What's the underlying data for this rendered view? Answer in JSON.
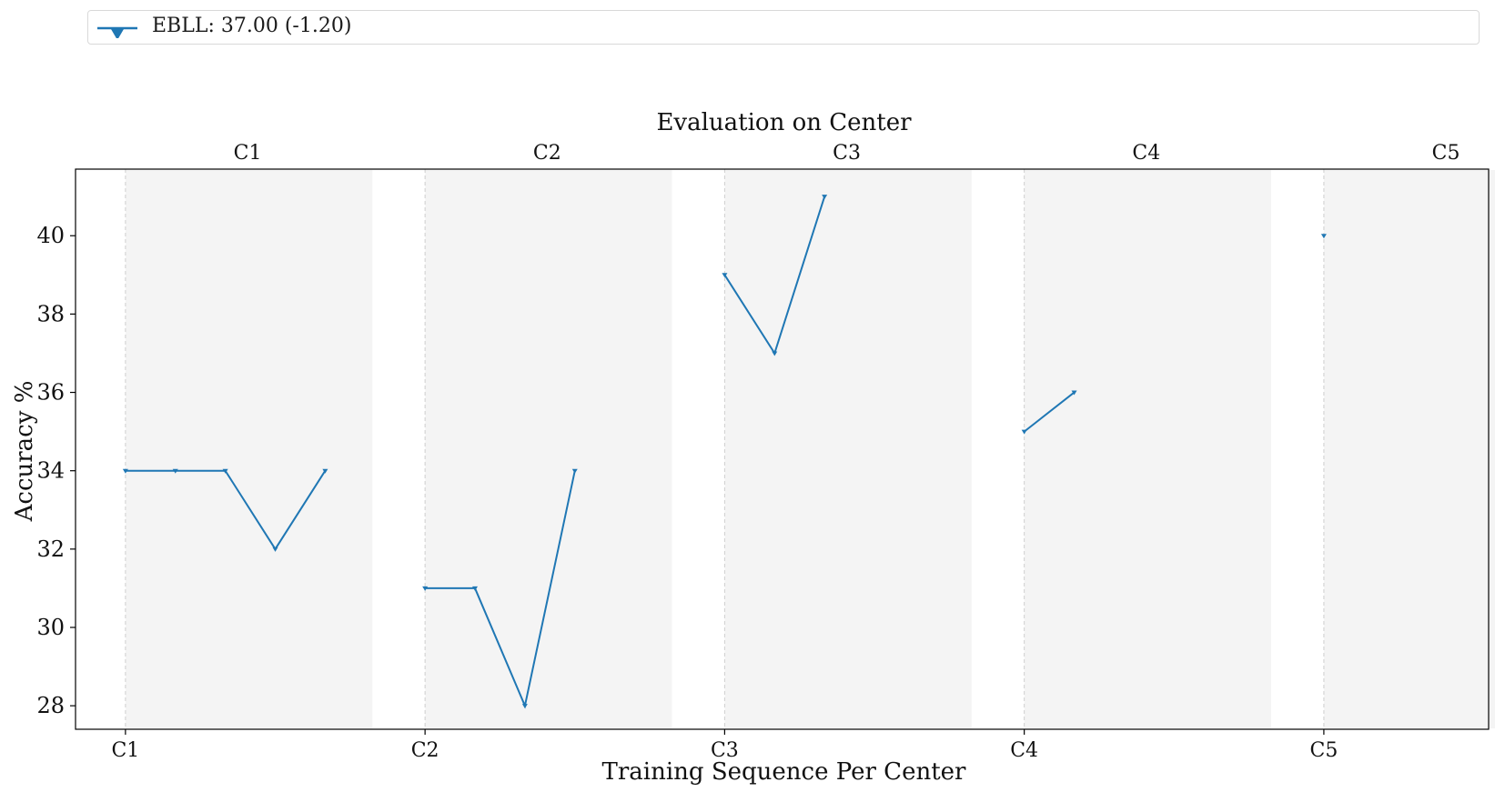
{
  "chart_data": {
    "type": "line",
    "title": "Evaluation on Center",
    "xlabel": "Training Sequence Per Center",
    "ylabel": "Accuracy %",
    "ylim": [
      27.4,
      41.7
    ],
    "yticks": [
      28,
      30,
      32,
      34,
      36,
      38,
      40
    ],
    "centers": [
      "C1",
      "C2",
      "C3",
      "C4",
      "C5"
    ],
    "bottom_ticks": [
      "C1",
      "C2",
      "C3",
      "C4",
      "C5"
    ],
    "legend": {
      "label": "EBLL: 37.00 (-1.20)",
      "placement": "top"
    },
    "grid": "vertical dashed at center starts",
    "series": [
      {
        "name": "EBLL",
        "color": "#1f77b4",
        "marker": "triangle-down",
        "segments": [
          {
            "center": "C1",
            "x": [
              0,
              1,
              2,
              3,
              4
            ],
            "values": [
              34,
              34,
              34,
              32,
              34
            ]
          },
          {
            "center": "C2",
            "x": [
              6,
              7,
              8,
              9
            ],
            "values": [
              31,
              31,
              28,
              34
            ]
          },
          {
            "center": "C3",
            "x": [
              12,
              13,
              14
            ],
            "values": [
              39,
              37,
              41
            ]
          },
          {
            "center": "C4",
            "x": [
              18,
              19
            ],
            "values": [
              35,
              36
            ]
          },
          {
            "center": "C5",
            "x": [
              24
            ],
            "values": [
              40
            ]
          }
        ]
      }
    ]
  }
}
